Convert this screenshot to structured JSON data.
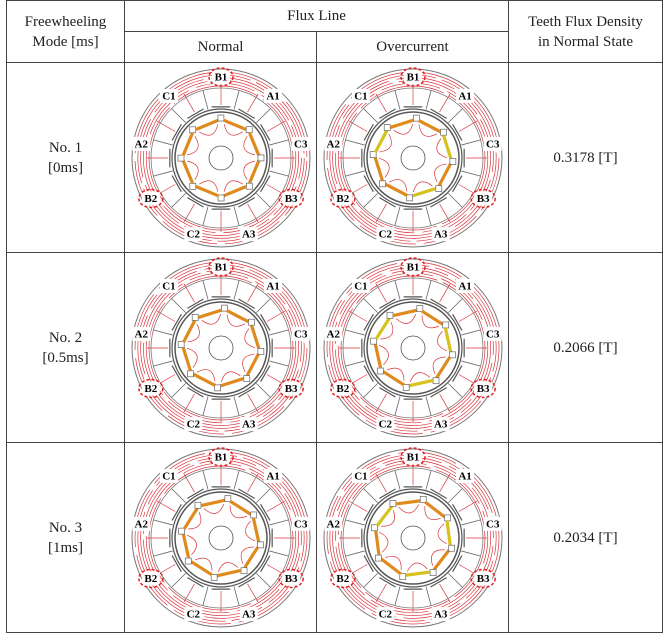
{
  "table": {
    "header": {
      "mode": "Freewheeling\nMode [ms]",
      "flux_line": "Flux Line",
      "normal": "Normal",
      "overcurrent": "Overcurrent",
      "density": "Teeth Flux Density\nin Normal State"
    },
    "rows": [
      {
        "mode": "No. 1\n[0ms]",
        "density": "0.3178 [T]"
      },
      {
        "mode": "No. 2\n[0.5ms]",
        "density": "0.2066 [T]"
      },
      {
        "mode": "No. 3\n[1ms]",
        "density": "0.2034 [T]"
      }
    ]
  },
  "diagram_labels": [
    "B1",
    "A1",
    "C3",
    "B3",
    "A3",
    "C2",
    "B2",
    "A2",
    "C1"
  ]
}
